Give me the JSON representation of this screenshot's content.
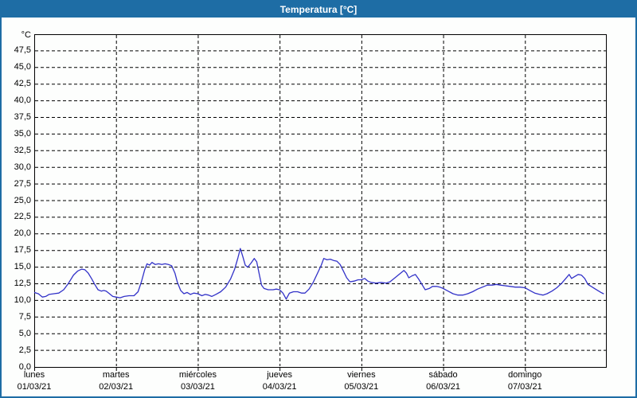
{
  "window": {
    "title": "Temperatura [°C]"
  },
  "colors": {
    "accent": "#1e6da5",
    "chart_bg": "#fdfefd",
    "grid": "#000000",
    "line": "#3232c8",
    "title_text": "#ffffff",
    "label_text": "#000000"
  },
  "chart_data": {
    "type": "line",
    "title": "Temperatura [°C]",
    "y_unit_label": "°C",
    "grid": "dashed",
    "legend": "none",
    "y_axis": {
      "min": 0,
      "max": 50,
      "tick_step": 2.5,
      "tick_labels_top_to_bottom": [
        "47,5",
        "45,0",
        "42,5",
        "40,0",
        "37,5",
        "35,0",
        "32,5",
        "30,0",
        "27,5",
        "25,0",
        "22,5",
        "20,0",
        "17,5",
        "15,0",
        "12,5",
        "10,0",
        "7,5",
        "5,0",
        "2,5",
        "0,0"
      ]
    },
    "x_axis": {
      "span_days": 7,
      "days": [
        {
          "name": "lunes",
          "date": "01/03/21"
        },
        {
          "name": "martes",
          "date": "02/03/21"
        },
        {
          "name": "miércoles",
          "date": "03/03/21"
        },
        {
          "name": "jueves",
          "date": "04/03/21"
        },
        {
          "name": "viernes",
          "date": "05/03/21"
        },
        {
          "name": "sábado",
          "date": "06/03/21"
        },
        {
          "name": "domingo",
          "date": "07/03/21"
        }
      ]
    },
    "series": [
      {
        "name": "Temperatura",
        "color": "#3232c8",
        "points_day_temp": [
          [
            0.0,
            11.2
          ],
          [
            0.05,
            11.0
          ],
          [
            0.1,
            10.5
          ],
          [
            0.14,
            10.6
          ],
          [
            0.18,
            10.9
          ],
          [
            0.24,
            11.0
          ],
          [
            0.3,
            11.1
          ],
          [
            0.36,
            11.6
          ],
          [
            0.42,
            12.6
          ],
          [
            0.48,
            13.8
          ],
          [
            0.53,
            14.4
          ],
          [
            0.58,
            14.7
          ],
          [
            0.62,
            14.6
          ],
          [
            0.66,
            14.1
          ],
          [
            0.7,
            13.3
          ],
          [
            0.74,
            12.4
          ],
          [
            0.78,
            11.6
          ],
          [
            0.82,
            11.4
          ],
          [
            0.85,
            11.5
          ],
          [
            0.88,
            11.4
          ],
          [
            0.92,
            11.0
          ],
          [
            0.96,
            10.6
          ],
          [
            1.0,
            10.5
          ],
          [
            1.05,
            10.4
          ],
          [
            1.1,
            10.6
          ],
          [
            1.16,
            10.7
          ],
          [
            1.22,
            10.7
          ],
          [
            1.27,
            11.3
          ],
          [
            1.31,
            12.8
          ],
          [
            1.35,
            14.6
          ],
          [
            1.38,
            15.5
          ],
          [
            1.41,
            15.3
          ],
          [
            1.44,
            15.7
          ],
          [
            1.48,
            15.4
          ],
          [
            1.52,
            15.5
          ],
          [
            1.56,
            15.4
          ],
          [
            1.6,
            15.5
          ],
          [
            1.64,
            15.4
          ],
          [
            1.68,
            15.2
          ],
          [
            1.72,
            14.1
          ],
          [
            1.75,
            12.7
          ],
          [
            1.79,
            11.5
          ],
          [
            1.83,
            11.0
          ],
          [
            1.87,
            11.2
          ],
          [
            1.91,
            10.9
          ],
          [
            1.95,
            11.1
          ],
          [
            2.0,
            11.0
          ],
          [
            2.05,
            10.7
          ],
          [
            2.09,
            10.9
          ],
          [
            2.13,
            10.8
          ],
          [
            2.17,
            10.6
          ],
          [
            2.22,
            10.9
          ],
          [
            2.28,
            11.3
          ],
          [
            2.34,
            12.0
          ],
          [
            2.4,
            13.2
          ],
          [
            2.45,
            14.7
          ],
          [
            2.49,
            16.4
          ],
          [
            2.52,
            17.8
          ],
          [
            2.55,
            16.6
          ],
          [
            2.58,
            15.3
          ],
          [
            2.61,
            15.0
          ],
          [
            2.65,
            15.6
          ],
          [
            2.69,
            16.3
          ],
          [
            2.72,
            15.8
          ],
          [
            2.75,
            14.0
          ],
          [
            2.78,
            12.3
          ],
          [
            2.81,
            11.8
          ],
          [
            2.86,
            11.6
          ],
          [
            2.92,
            11.6
          ],
          [
            2.96,
            11.7
          ],
          [
            3.0,
            11.6
          ],
          [
            3.04,
            11.1
          ],
          [
            3.08,
            10.2
          ],
          [
            3.12,
            11.1
          ],
          [
            3.17,
            11.3
          ],
          [
            3.22,
            11.3
          ],
          [
            3.27,
            11.1
          ],
          [
            3.31,
            11.1
          ],
          [
            3.36,
            11.7
          ],
          [
            3.41,
            12.7
          ],
          [
            3.46,
            14.0
          ],
          [
            3.51,
            15.3
          ],
          [
            3.54,
            16.3
          ],
          [
            3.58,
            16.1
          ],
          [
            3.62,
            16.2
          ],
          [
            3.66,
            16.0
          ],
          [
            3.7,
            15.9
          ],
          [
            3.74,
            15.4
          ],
          [
            3.78,
            14.4
          ],
          [
            3.82,
            13.4
          ],
          [
            3.86,
            12.8
          ],
          [
            3.91,
            12.9
          ],
          [
            3.96,
            13.1
          ],
          [
            4.0,
            13.1
          ],
          [
            4.04,
            13.3
          ],
          [
            4.08,
            12.9
          ],
          [
            4.12,
            12.7
          ],
          [
            4.18,
            12.6
          ],
          [
            4.24,
            12.7
          ],
          [
            4.3,
            12.6
          ],
          [
            4.35,
            12.8
          ],
          [
            4.41,
            13.4
          ],
          [
            4.47,
            14.0
          ],
          [
            4.52,
            14.5
          ],
          [
            4.55,
            14.1
          ],
          [
            4.58,
            13.4
          ],
          [
            4.62,
            13.7
          ],
          [
            4.66,
            13.9
          ],
          [
            4.7,
            13.2
          ],
          [
            4.74,
            12.4
          ],
          [
            4.78,
            11.6
          ],
          [
            4.83,
            11.8
          ],
          [
            4.87,
            12.1
          ],
          [
            4.92,
            12.1
          ],
          [
            4.96,
            12.0
          ],
          [
            5.0,
            11.8
          ],
          [
            5.06,
            11.4
          ],
          [
            5.12,
            11.0
          ],
          [
            5.18,
            10.8
          ],
          [
            5.24,
            10.8
          ],
          [
            5.3,
            11.0
          ],
          [
            5.36,
            11.3
          ],
          [
            5.42,
            11.7
          ],
          [
            5.48,
            12.0
          ],
          [
            5.54,
            12.3
          ],
          [
            5.6,
            12.3
          ],
          [
            5.65,
            12.4
          ],
          [
            5.7,
            12.3
          ],
          [
            5.76,
            12.2
          ],
          [
            5.82,
            12.1
          ],
          [
            5.88,
            12.0
          ],
          [
            5.94,
            12.0
          ],
          [
            6.0,
            11.9
          ],
          [
            6.06,
            11.5
          ],
          [
            6.12,
            11.1
          ],
          [
            6.18,
            10.9
          ],
          [
            6.22,
            10.8
          ],
          [
            6.27,
            11.0
          ],
          [
            6.33,
            11.4
          ],
          [
            6.39,
            11.9
          ],
          [
            6.45,
            12.6
          ],
          [
            6.5,
            13.3
          ],
          [
            6.54,
            13.9
          ],
          [
            6.57,
            13.3
          ],
          [
            6.61,
            13.6
          ],
          [
            6.65,
            13.9
          ],
          [
            6.69,
            13.8
          ],
          [
            6.73,
            13.3
          ],
          [
            6.77,
            12.4
          ],
          [
            6.81,
            12.1
          ],
          [
            6.85,
            11.8
          ],
          [
            6.89,
            11.5
          ],
          [
            6.93,
            11.2
          ],
          [
            6.96,
            11.0
          ]
        ]
      }
    ]
  }
}
